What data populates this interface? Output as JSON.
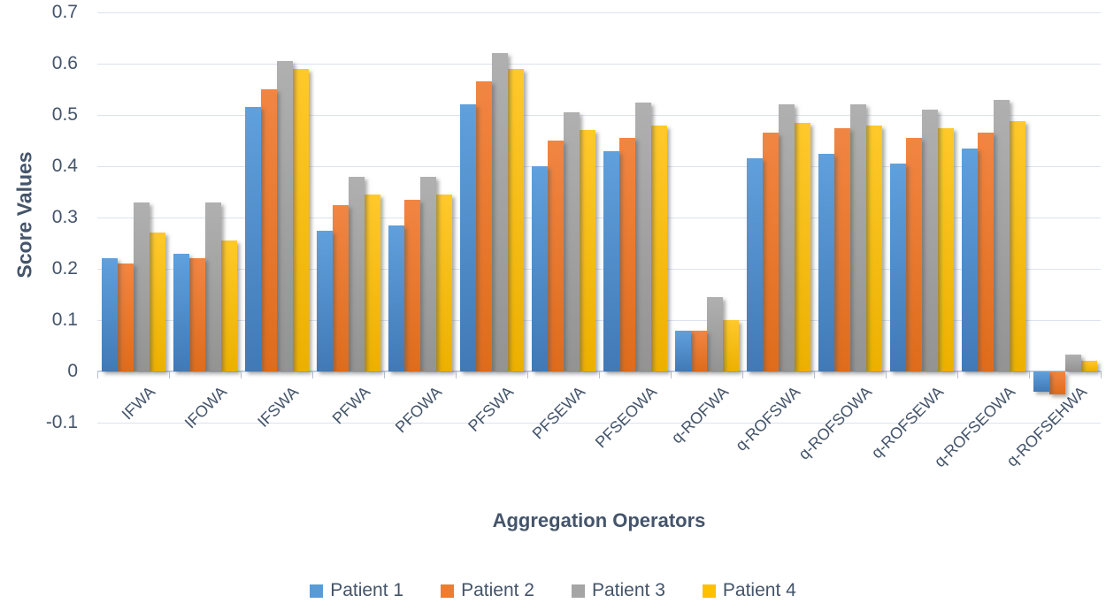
{
  "chart_data": {
    "type": "bar",
    "title": "",
    "xlabel": "Aggregation Operators",
    "ylabel": "Score Values",
    "ylim": [
      -0.1,
      0.7
    ],
    "grid": true,
    "legend_position": "bottom",
    "ytick_labels": [
      "0.7",
      "0.6",
      "0.5",
      "0.4",
      "0.3",
      "0.2",
      "0.1",
      "0",
      "-0.1"
    ],
    "categories": [
      "IFWA",
      "IFOWA",
      "IFSWA",
      "PFWA",
      "PFOWA",
      "PFSWA",
      "PFSEWA",
      "PFSEOWA",
      "q-ROFWA",
      "q-ROFSWA",
      "q-ROFSOWA",
      "q-ROFSEWA",
      "q-ROFSEOWA",
      "q-ROFSEHWA"
    ],
    "series": [
      {
        "name": "Patient 1",
        "color": "#5B9BD5",
        "values": [
          0.22,
          0.23,
          0.515,
          0.275,
          0.285,
          0.52,
          0.4,
          0.43,
          0.08,
          0.415,
          0.425,
          0.405,
          0.435,
          -0.04
        ]
      },
      {
        "name": "Patient 2",
        "color": "#ED7D31",
        "values": [
          0.21,
          0.22,
          0.55,
          0.325,
          0.335,
          0.565,
          0.45,
          0.455,
          0.08,
          0.465,
          0.475,
          0.455,
          0.465,
          -0.045
        ]
      },
      {
        "name": "Patient 3",
        "color": "#A5A5A5",
        "values": [
          0.33,
          0.33,
          0.605,
          0.38,
          0.38,
          0.62,
          0.505,
          0.525,
          0.145,
          0.52,
          0.52,
          0.51,
          0.53,
          0.033
        ]
      },
      {
        "name": "Patient 4",
        "color": "#FFC000",
        "values": [
          0.27,
          0.255,
          0.59,
          0.345,
          0.345,
          0.59,
          0.47,
          0.48,
          0.1,
          0.485,
          0.48,
          0.475,
          0.488,
          0.02
        ]
      }
    ]
  }
}
